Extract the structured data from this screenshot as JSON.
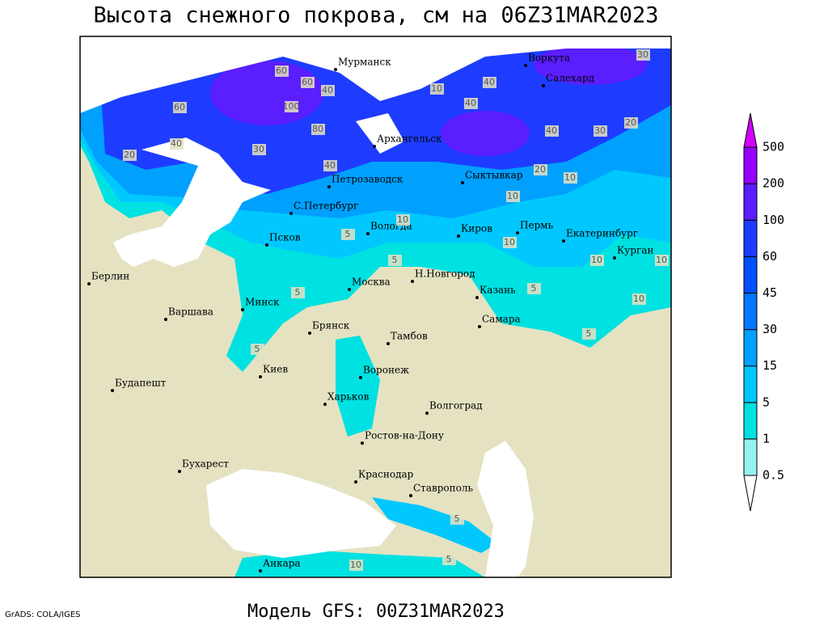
{
  "title": "Высота снежного покрова, см на 06Z31MAR2023",
  "subtitle": "Модель GFS: 00Z31MAR2023",
  "credit": "GrADS: COLA/IGES",
  "cities": [
    "Мурманск",
    "Воркута",
    "Салехард",
    "Архангельск",
    "Петрозаводск",
    "Сыктывкар",
    "С.Петербург",
    "Вологда",
    "Киров",
    "Пермь",
    "Екатеринбург",
    "Курган",
    "Псков",
    "Берлин",
    "Н.Новгород",
    "Москва",
    "Казань",
    "Минск",
    "Варшава",
    "Самара",
    "Брянск",
    "Тамбов",
    "Киев",
    "Воронеж",
    "Будапешт",
    "Харьков",
    "Волгоград",
    "Ростов-на-Дону",
    "Бухарест",
    "Краснодар",
    "Ставрополь",
    "Анкара"
  ],
  "contour_labels": [
    60,
    60,
    40,
    100,
    80,
    40,
    30,
    20,
    60,
    40,
    40,
    30,
    20,
    40,
    40,
    30,
    20,
    10,
    10,
    10,
    5,
    5,
    10,
    10,
    5,
    10,
    5,
    10,
    5,
    5,
    10,
    5,
    10,
    5
  ],
  "legend": {
    "levels": [
      0.5,
      1,
      5,
      15,
      30,
      45,
      60,
      100,
      200,
      500
    ],
    "colors": [
      "#ffffff",
      "#96f0f0",
      "#00e1e1",
      "#00c8ff",
      "#00a0ff",
      "#0078ff",
      "#0050ff",
      "#1e3cff",
      "#5a1eff",
      "#9600ff",
      "#d200ff"
    ]
  }
}
